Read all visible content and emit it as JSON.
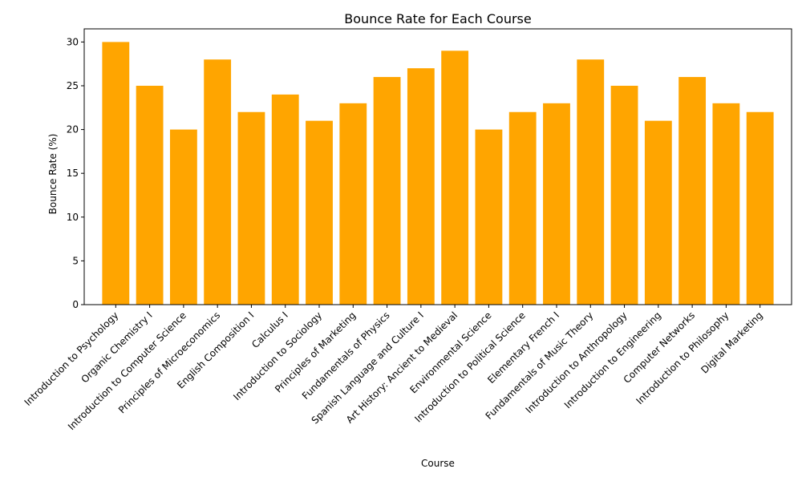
{
  "chart_data": {
    "type": "bar",
    "title": "Bounce Rate for Each Course",
    "xlabel": "Course",
    "ylabel": "Bounce Rate (%)",
    "ylim": [
      0,
      31.5
    ],
    "yticks": [
      0,
      5,
      10,
      15,
      20,
      25,
      30
    ],
    "grid": false,
    "bar_color": "#FFA500",
    "categories": [
      "Introduction to Psychology",
      "Organic Chemistry I",
      "Introduction to Computer Science",
      "Principles of Microeconomics",
      "English Composition I",
      "Calculus I",
      "Introduction to Sociology",
      "Principles of Marketing",
      "Fundamentals of Physics",
      "Spanish Language and Culture I",
      "Art History: Ancient to Medieval",
      "Environmental Science",
      "Introduction to Political Science",
      "Elementary French I",
      "Fundamentals of Music Theory",
      "Introduction to Anthropology",
      "Introduction to Engineering",
      "Computer Networks",
      "Introduction to Philosophy",
      "Digital Marketing"
    ],
    "values": [
      30,
      25,
      20,
      28,
      22,
      24,
      21,
      23,
      26,
      27,
      29,
      20,
      22,
      23,
      28,
      25,
      21,
      26,
      23,
      22
    ]
  }
}
